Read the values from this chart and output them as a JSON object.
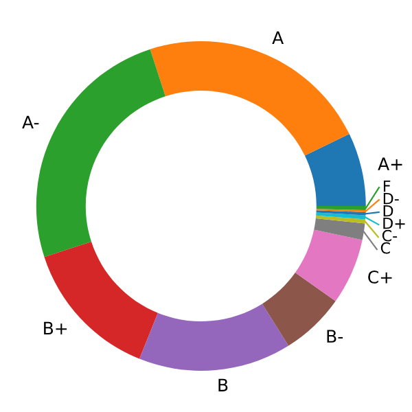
{
  "chart_data": {
    "type": "donut",
    "categories": [
      "A+",
      "A",
      "A-",
      "B+",
      "B",
      "B-",
      "C+",
      "C",
      "C-",
      "D+",
      "D",
      "D-",
      "F"
    ],
    "values": [
      7.2,
      22.8,
      25,
      13.9,
      15,
      6.3,
      6.5,
      1.6,
      0.4,
      0.4,
      0.3,
      0.2,
      0.4
    ],
    "colors": [
      "#1f77b4",
      "#ff7f0e",
      "#2ca02c",
      "#d62728",
      "#9467bd",
      "#8c564b",
      "#e377c2",
      "#7f7f7f",
      "#bcbd22",
      "#17becf",
      "#1f77b4",
      "#ff7f0e",
      "#2ca02c"
    ]
  }
}
